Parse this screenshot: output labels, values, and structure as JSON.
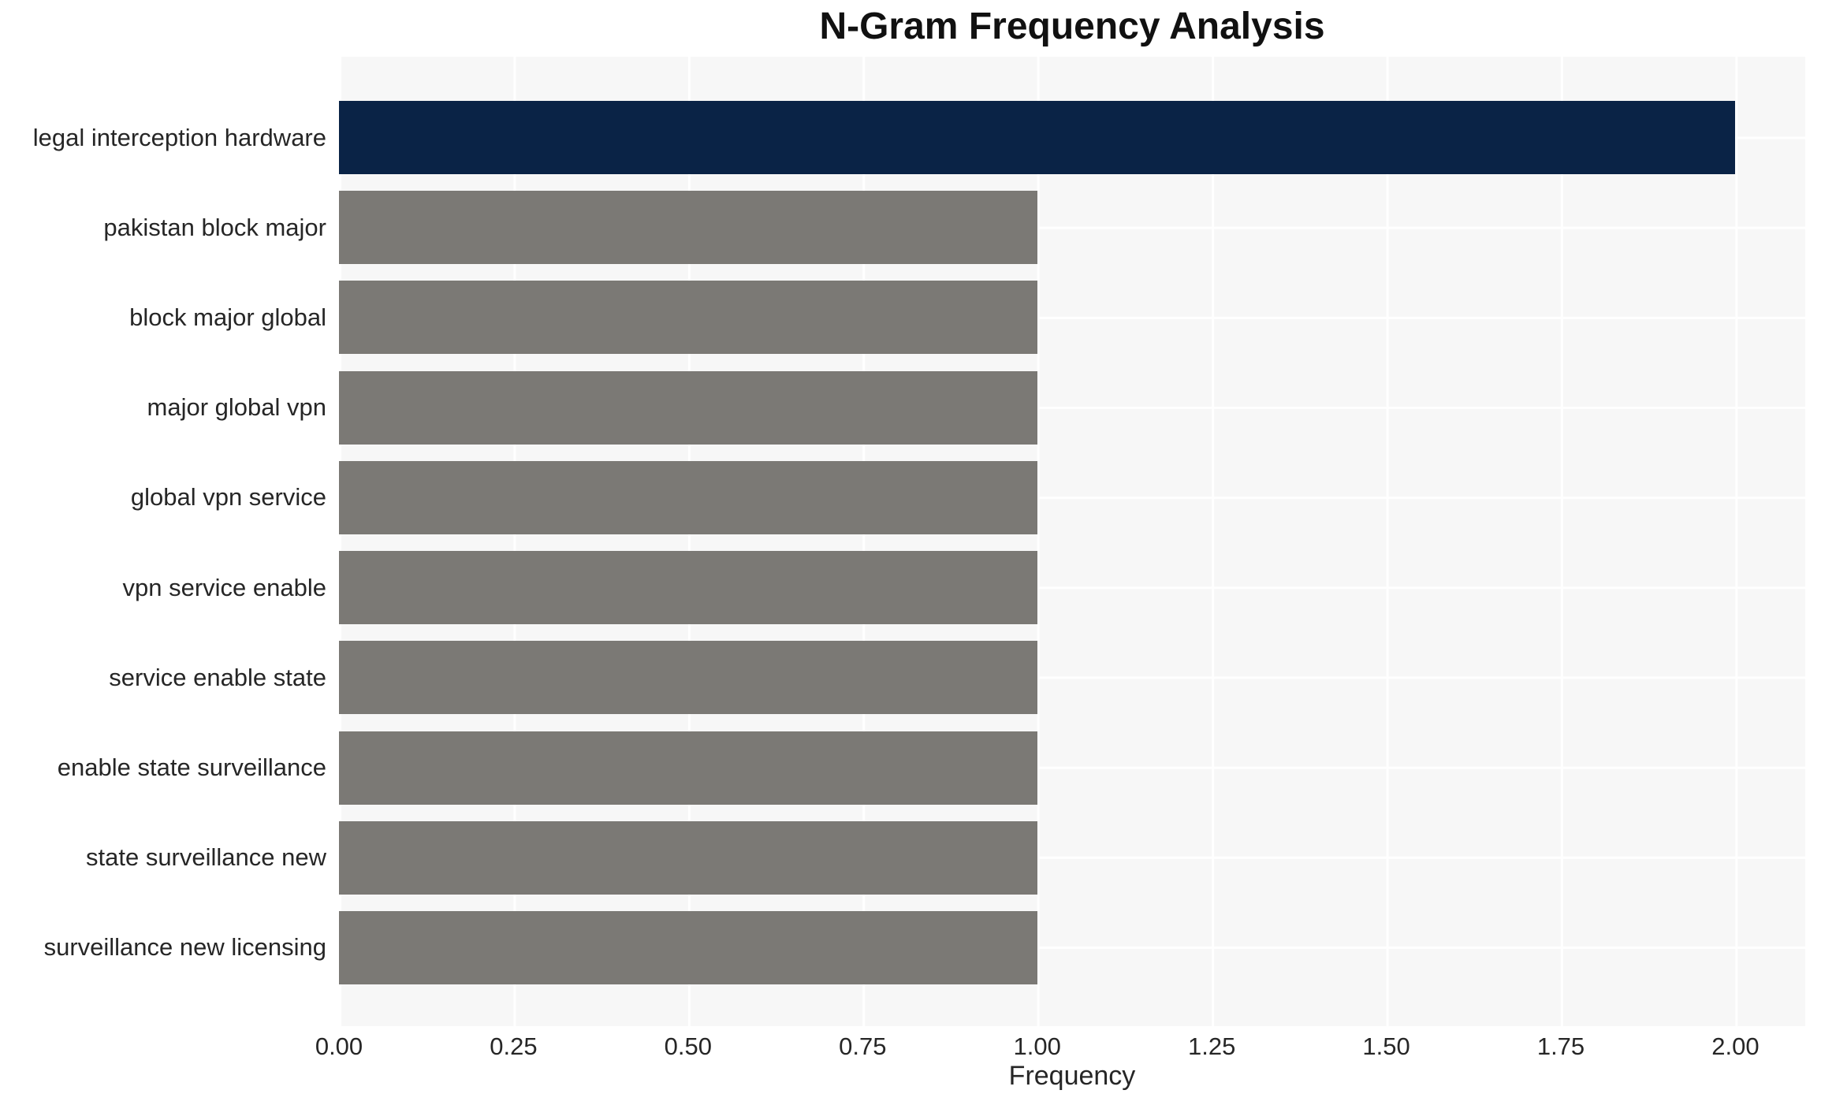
{
  "chart_data": {
    "type": "bar",
    "orientation": "horizontal",
    "title": "N-Gram Frequency Analysis",
    "xlabel": "Frequency",
    "ylabel": "",
    "categories": [
      "legal interception hardware",
      "pakistan block major",
      "block major global",
      "major global vpn",
      "global vpn service",
      "vpn service enable",
      "service enable state",
      "enable state surveillance",
      "state surveillance new",
      "surveillance new licensing"
    ],
    "values": [
      2,
      1,
      1,
      1,
      1,
      1,
      1,
      1,
      1,
      1
    ],
    "bar_colors": [
      "#0a2346",
      "#7b7975",
      "#7b7975",
      "#7b7975",
      "#7b7975",
      "#7b7975",
      "#7b7975",
      "#7b7975",
      "#7b7975",
      "#7b7975"
    ],
    "x_tick_values": [
      0,
      0.25,
      0.5,
      0.75,
      1.0,
      1.25,
      1.5,
      1.75,
      2.0
    ],
    "x_tick_labels": [
      "0.00",
      "0.25",
      "0.50",
      "0.75",
      "1.00",
      "1.25",
      "1.50",
      "1.75",
      "2.00"
    ],
    "xlim": [
      0,
      2.1
    ],
    "grid": true,
    "legend": null,
    "colors": {
      "highlight": "#0a2346",
      "default": "#7b7975",
      "plot_background": "#f7f7f7",
      "grid_line": "#ffffff",
      "text": "#262626"
    }
  }
}
